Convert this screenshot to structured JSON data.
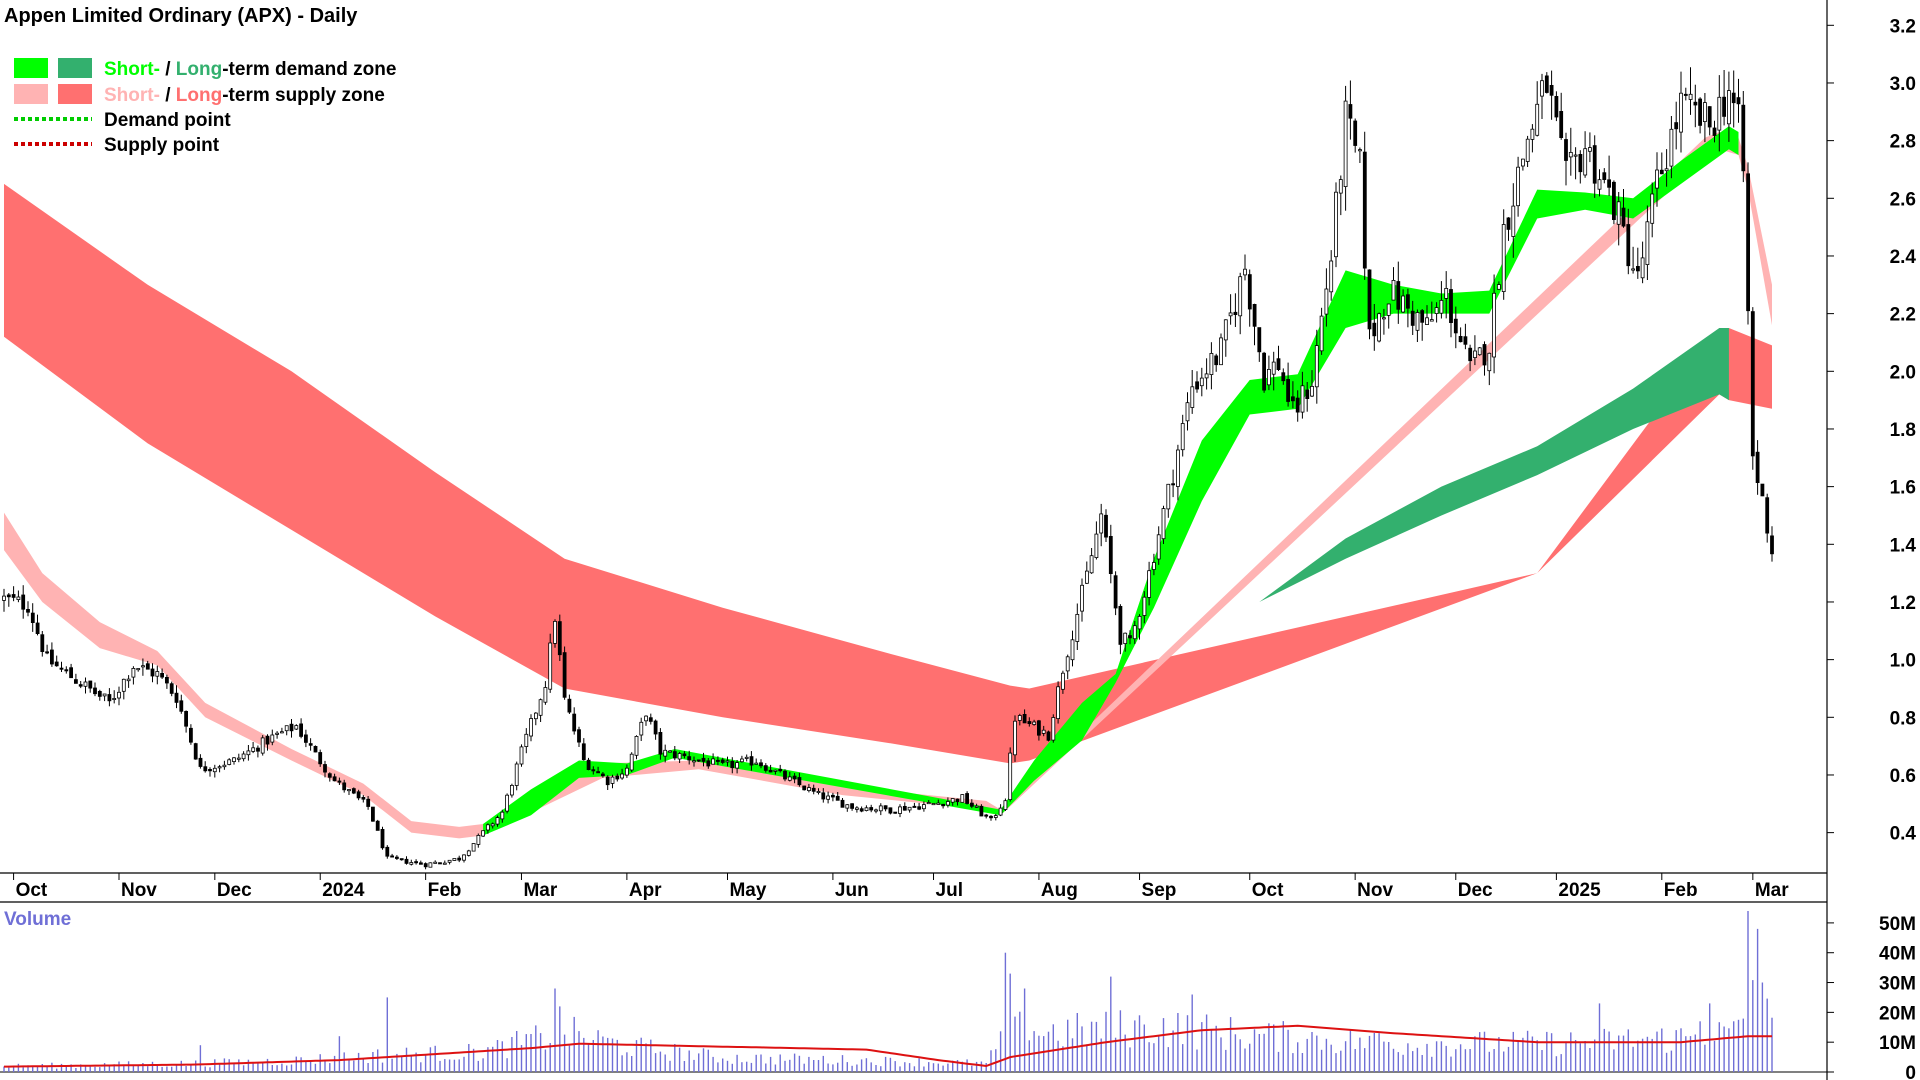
{
  "chart_data": {
    "type": "candlestick",
    "title": "Appen Limited Ordinary (APX) - Daily",
    "legend": {
      "placement": "top-left",
      "entries": [
        {
          "key": "demand-zone",
          "parts": [
            {
              "text": "Short-",
              "color": "#00ff00"
            },
            {
              "text": " / ",
              "color": "#000000"
            },
            {
              "text": "Long",
              "color": "#33b06e"
            },
            {
              "text": "-term demand zone",
              "color": "#000000"
            }
          ],
          "swatches": [
            "#00ff00",
            "#33b06e"
          ]
        },
        {
          "key": "supply-zone",
          "parts": [
            {
              "text": "Short-",
              "color": "#ffb3b3"
            },
            {
              "text": " / ",
              "color": "#000000"
            },
            {
              "text": "Long",
              "color": "#ff7070"
            },
            {
              "text": "-term supply zone",
              "color": "#000000"
            }
          ],
          "swatches": [
            "#ffb3b3",
            "#ff7070"
          ]
        },
        {
          "key": "demand-point",
          "parts": [
            {
              "text": "Demand point",
              "color": "#000000"
            }
          ],
          "line": "#00cc00"
        },
        {
          "key": "supply-point",
          "parts": [
            {
              "text": "Supply point",
              "color": "#000000"
            }
          ],
          "line": "#cc0000"
        }
      ]
    },
    "x_axis": {
      "labels": [
        "Oct",
        "Nov",
        "Dec",
        "2024",
        "Feb",
        "Mar",
        "Apr",
        "May",
        "Jun",
        "Jul",
        "Aug",
        "Sep",
        "Oct",
        "Nov",
        "Dec",
        "2025",
        "Feb",
        "Mar"
      ],
      "label_index": [
        2,
        24,
        44,
        66,
        88,
        108,
        130,
        151,
        173,
        194,
        216,
        237,
        260,
        282,
        303,
        324,
        346,
        365
      ],
      "n_bars": 370
    },
    "y_axis": {
      "ticks": [
        0.4,
        0.6,
        0.8,
        1.0,
        1.2,
        1.4,
        1.6,
        1.8,
        2.0,
        2.2,
        2.4,
        2.6,
        2.8,
        3.0,
        3.2
      ],
      "range": [
        0.26,
        3.26
      ],
      "tick_labels": [
        "0.4",
        "0.6",
        "0.8",
        "1.0",
        "1.2",
        "1.4",
        "1.6",
        "1.8",
        "2.0",
        "2.2",
        "2.4",
        "2.6",
        "2.8",
        "3.0",
        "3.2"
      ]
    },
    "price_keyframes": [
      [
        0,
        1.21
      ],
      [
        5,
        1.19
      ],
      [
        9,
        1.0
      ],
      [
        15,
        0.93
      ],
      [
        22,
        0.85
      ],
      [
        27,
        0.98
      ],
      [
        32,
        0.95
      ],
      [
        36,
        0.87
      ],
      [
        41,
        0.62
      ],
      [
        48,
        0.65
      ],
      [
        56,
        0.73
      ],
      [
        61,
        0.77
      ],
      [
        65,
        0.67
      ],
      [
        69,
        0.58
      ],
      [
        76,
        0.49
      ],
      [
        80,
        0.31
      ],
      [
        88,
        0.29
      ],
      [
        95,
        0.31
      ],
      [
        100,
        0.4
      ],
      [
        104,
        0.47
      ],
      [
        108,
        0.68
      ],
      [
        113,
        0.92
      ],
      [
        115,
        1.15
      ],
      [
        117,
        0.86
      ],
      [
        121,
        0.65
      ],
      [
        126,
        0.58
      ],
      [
        130,
        0.62
      ],
      [
        134,
        0.82
      ],
      [
        137,
        0.68
      ],
      [
        143,
        0.66
      ],
      [
        150,
        0.63
      ],
      [
        157,
        0.65
      ],
      [
        162,
        0.6
      ],
      [
        170,
        0.53
      ],
      [
        177,
        0.49
      ],
      [
        185,
        0.48
      ],
      [
        194,
        0.5
      ],
      [
        200,
        0.52
      ],
      [
        206,
        0.44
      ],
      [
        209,
        0.52
      ],
      [
        211,
        0.8
      ],
      [
        218,
        0.74
      ],
      [
        221,
        0.97
      ],
      [
        226,
        1.29
      ],
      [
        229,
        1.5
      ],
      [
        233,
        1.08
      ],
      [
        235,
        1.05
      ],
      [
        239,
        1.3
      ],
      [
        243,
        1.58
      ],
      [
        248,
        1.95
      ],
      [
        254,
        2.07
      ],
      [
        259,
        2.36
      ],
      [
        263,
        1.98
      ],
      [
        266,
        2.03
      ],
      [
        269,
        1.85
      ],
      [
        273,
        1.97
      ],
      [
        277,
        2.4
      ],
      [
        280,
        2.87
      ],
      [
        283,
        2.7
      ],
      [
        285,
        2.11
      ],
      [
        289,
        2.28
      ],
      [
        292,
        2.23
      ],
      [
        297,
        2.15
      ],
      [
        301,
        2.26
      ],
      [
        306,
        2.0
      ],
      [
        310,
        2.1
      ],
      [
        313,
        2.49
      ],
      [
        318,
        2.81
      ],
      [
        322,
        3.0
      ],
      [
        326,
        2.66
      ],
      [
        330,
        2.78
      ],
      [
        336,
        2.58
      ],
      [
        341,
        2.31
      ],
      [
        345,
        2.65
      ],
      [
        350,
        2.92
      ],
      [
        356,
        2.85
      ],
      [
        360,
        2.98
      ],
      [
        362,
        2.85
      ],
      [
        363,
        2.69
      ],
      [
        365,
        1.7
      ],
      [
        367,
        1.55
      ],
      [
        369,
        1.38
      ]
    ],
    "short_term_supply_zone": {
      "color": "#ffb3b3",
      "upper": [
        [
          0,
          1.51
        ],
        [
          8,
          1.3
        ],
        [
          20,
          1.13
        ],
        [
          32,
          1.03
        ],
        [
          42,
          0.85
        ],
        [
          60,
          0.69
        ],
        [
          75,
          0.57
        ],
        [
          85,
          0.44
        ],
        [
          95,
          0.42
        ],
        [
          100,
          0.43
        ],
        [
          125,
          0.64
        ],
        [
          145,
          0.65
        ],
        [
          175,
          0.56
        ],
        [
          205,
          0.51
        ],
        [
          208,
          0.48
        ],
        [
          355,
          2.81
        ],
        [
          358,
          2.83
        ],
        [
          362,
          2.81
        ],
        [
          364,
          2.71
        ],
        [
          369,
          2.3
        ]
      ],
      "lower": [
        [
          0,
          1.38
        ],
        [
          8,
          1.2
        ],
        [
          20,
          1.04
        ],
        [
          32,
          0.98
        ],
        [
          42,
          0.8
        ],
        [
          60,
          0.65
        ],
        [
          75,
          0.53
        ],
        [
          85,
          0.4
        ],
        [
          95,
          0.38
        ],
        [
          100,
          0.39
        ],
        [
          125,
          0.59
        ],
        [
          145,
          0.62
        ],
        [
          175,
          0.53
        ],
        [
          205,
          0.48
        ],
        [
          208,
          0.46
        ],
        [
          355,
          2.74
        ],
        [
          358,
          2.77
        ],
        [
          362,
          2.75
        ],
        [
          364,
          2.63
        ],
        [
          369,
          2.16
        ]
      ]
    },
    "long_term_supply_zone": {
      "color": "#ff7070",
      "upper": [
        [
          0,
          2.65
        ],
        [
          30,
          2.3
        ],
        [
          60,
          2.0
        ],
        [
          90,
          1.65
        ],
        [
          117,
          1.35
        ],
        [
          150,
          1.18
        ],
        [
          185,
          1.02
        ],
        [
          210,
          0.91
        ],
        [
          214,
          0.9
        ],
        [
          320,
          1.3
        ],
        [
          358,
          2.15
        ],
        [
          360,
          2.15
        ],
        [
          369,
          2.09
        ]
      ],
      "lower": [
        [
          0,
          2.12
        ],
        [
          30,
          1.75
        ],
        [
          60,
          1.45
        ],
        [
          90,
          1.15
        ],
        [
          117,
          0.9
        ],
        [
          150,
          0.8
        ],
        [
          185,
          0.71
        ],
        [
          210,
          0.64
        ],
        [
          214,
          0.65
        ],
        [
          320,
          1.3
        ],
        [
          358,
          1.92
        ],
        [
          360,
          1.9
        ],
        [
          369,
          1.87
        ]
      ]
    },
    "short_term_demand_zone": {
      "color": "#00ff00",
      "upper": [
        [
          100,
          0.43
        ],
        [
          110,
          0.55
        ],
        [
          120,
          0.65
        ],
        [
          130,
          0.64
        ],
        [
          140,
          0.69
        ],
        [
          208,
          0.48
        ],
        [
          215,
          0.65
        ],
        [
          225,
          0.85
        ],
        [
          232,
          0.95
        ],
        [
          240,
          1.35
        ],
        [
          250,
          1.76
        ],
        [
          260,
          1.97
        ],
        [
          270,
          1.99
        ],
        [
          280,
          2.35
        ],
        [
          290,
          2.3
        ],
        [
          300,
          2.27
        ],
        [
          310,
          2.28
        ],
        [
          320,
          2.63
        ],
        [
          330,
          2.62
        ],
        [
          340,
          2.6
        ],
        [
          350,
          2.73
        ],
        [
          360,
          2.85
        ],
        [
          362,
          2.83
        ]
      ],
      "lower": [
        [
          100,
          0.39
        ],
        [
          110,
          0.46
        ],
        [
          120,
          0.59
        ],
        [
          130,
          0.6
        ],
        [
          140,
          0.66
        ],
        [
          208,
          0.46
        ],
        [
          215,
          0.58
        ],
        [
          225,
          0.72
        ],
        [
          232,
          0.92
        ],
        [
          240,
          1.18
        ],
        [
          250,
          1.55
        ],
        [
          260,
          1.85
        ],
        [
          270,
          1.87
        ],
        [
          280,
          2.15
        ],
        [
          290,
          2.2
        ],
        [
          300,
          2.2
        ],
        [
          310,
          2.2
        ],
        [
          320,
          2.53
        ],
        [
          330,
          2.56
        ],
        [
          340,
          2.53
        ],
        [
          350,
          2.65
        ],
        [
          360,
          2.77
        ],
        [
          362,
          2.75
        ]
      ]
    },
    "long_term_demand_zone": {
      "color": "#33b06e",
      "upper": [
        [
          262,
          1.2
        ],
        [
          280,
          1.42
        ],
        [
          300,
          1.6
        ],
        [
          320,
          1.74
        ],
        [
          340,
          1.94
        ],
        [
          358,
          2.15
        ],
        [
          360,
          2.15
        ]
      ],
      "lower": [
        [
          262,
          1.2
        ],
        [
          280,
          1.35
        ],
        [
          300,
          1.5
        ],
        [
          320,
          1.64
        ],
        [
          340,
          1.8
        ],
        [
          358,
          1.92
        ],
        [
          360,
          1.9
        ]
      ]
    },
    "volume_panel": {
      "label": "Volume",
      "y_ticks": [
        0,
        10,
        20,
        30,
        40,
        50
      ],
      "tick_labels": [
        "0",
        "10M",
        "20M",
        "30M",
        "40M",
        "50M"
      ],
      "range_millions": [
        0,
        56
      ],
      "bar_color": "#6f6fd6",
      "average_line_color": "#dd1111",
      "volume_keyframes_millions": [
        [
          0,
          2
        ],
        [
          40,
          3
        ],
        [
          60,
          4
        ],
        [
          80,
          6
        ],
        [
          100,
          7
        ],
        [
          117,
          14
        ],
        [
          130,
          9
        ],
        [
          150,
          5
        ],
        [
          180,
          4
        ],
        [
          205,
          3
        ],
        [
          210,
          15
        ],
        [
          220,
          14
        ],
        [
          240,
          16
        ],
        [
          260,
          13
        ],
        [
          290,
          10
        ],
        [
          320,
          10
        ],
        [
          350,
          12
        ],
        [
          362,
          14
        ],
        [
          365,
          30
        ],
        [
          369,
          15
        ]
      ],
      "volume_spikes_millions": [
        [
          41,
          9
        ],
        [
          70,
          12
        ],
        [
          80,
          25
        ],
        [
          115,
          28
        ],
        [
          116,
          22
        ],
        [
          209,
          40
        ],
        [
          210,
          33
        ],
        [
          213,
          28
        ],
        [
          231,
          32
        ],
        [
          248,
          26
        ],
        [
          287,
          13
        ],
        [
          333,
          23
        ],
        [
          354,
          17
        ],
        [
          356,
          23
        ],
        [
          364,
          54
        ],
        [
          366,
          48
        ],
        [
          367,
          30
        ]
      ],
      "average_keyframes_millions": [
        [
          0,
          1.8
        ],
        [
          40,
          2.5
        ],
        [
          70,
          4
        ],
        [
          90,
          6
        ],
        [
          110,
          8
        ],
        [
          120,
          9.5
        ],
        [
          150,
          8.5
        ],
        [
          180,
          7.5
        ],
        [
          195,
          4
        ],
        [
          205,
          2
        ],
        [
          210,
          5
        ],
        [
          230,
          10
        ],
        [
          250,
          14
        ],
        [
          270,
          15.5
        ],
        [
          290,
          13
        ],
        [
          320,
          10
        ],
        [
          350,
          10
        ],
        [
          364,
          12
        ],
        [
          369,
          12
        ]
      ]
    }
  }
}
